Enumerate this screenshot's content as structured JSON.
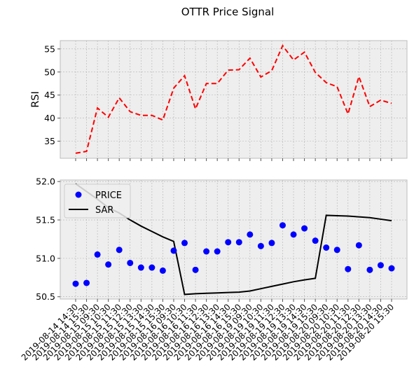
{
  "title": "OTTR Price Signal",
  "chart_data": [
    {
      "type": "line",
      "panel": "rsi",
      "ylabel": "RSI",
      "ylim": [
        31.3,
        56.8
      ],
      "yticks": [
        35,
        40,
        45,
        50,
        55
      ],
      "grid": true,
      "series": [
        {
          "name": "",
          "color": "#ff0000",
          "style": "dashed",
          "values": [
            32.4,
            32.8,
            42.2,
            40.2,
            44.4,
            41.4,
            40.6,
            40.6,
            39.6,
            46.5,
            49.2,
            42.0,
            47.5,
            47.5,
            50.4,
            50.5,
            53.0,
            48.9,
            50.3,
            55.7,
            52.6,
            54.3,
            49.9,
            47.7,
            46.8,
            40.9,
            49.0,
            42.5,
            43.9,
            43.2
          ]
        }
      ]
    },
    {
      "type": "line+scatter",
      "panel": "price",
      "ylim": [
        50.47,
        52.02
      ],
      "yticks": [
        50.5,
        51.0,
        51.5,
        52.0
      ],
      "ytick_labels": [
        "50.5",
        "51.0",
        "51.5",
        "52.0"
      ],
      "grid": true,
      "legend": {
        "placement": "top-left",
        "entries": [
          "PRICE",
          "SAR"
        ]
      },
      "x": [
        "2019-08-14 14:30",
        "2019-08-14 15:30",
        "2019-08-15 09:30",
        "2019-08-15 10:30",
        "2019-08-15 11:30",
        "2019-08-15 12:30",
        "2019-08-15 13:30",
        "2019-08-15 14:30",
        "2019-08-15 15:30",
        "2019-08-16 09:30",
        "2019-08-16 10:30",
        "2019-08-16 11:30",
        "2019-08-16 12:30",
        "2019-08-16 13:30",
        "2019-08-16 14:30",
        "2019-08-16 15:30",
        "2019-08-19 09:30",
        "2019-08-19 10:30",
        "2019-08-19 11:30",
        "2019-08-19 12:30",
        "2019-08-19 13:30",
        "2019-08-19 14:30",
        "2019-08-19 15:30",
        "2019-08-20 09:30",
        "2019-08-20 10:30",
        "2019-08-20 11:30",
        "2019-08-20 12:30",
        "2019-08-20 13:30",
        "2019-08-20 14:30",
        "2019-08-20 15:30"
      ],
      "series": [
        {
          "name": "PRICE",
          "kind": "scatter",
          "color": "#0000ff",
          "values": [
            50.67,
            50.68,
            51.05,
            50.92,
            51.11,
            50.94,
            50.88,
            50.88,
            50.84,
            51.1,
            51.2,
            50.85,
            51.09,
            51.09,
            51.21,
            51.21,
            51.31,
            51.16,
            51.2,
            51.43,
            51.31,
            51.39,
            51.23,
            51.14,
            51.11,
            50.86,
            51.17,
            50.85,
            50.91,
            50.87
          ]
        },
        {
          "name": "SAR",
          "kind": "line",
          "color": "#000000",
          "values": [
            51.97,
            51.87,
            51.77,
            51.66,
            51.59,
            51.5,
            51.42,
            51.35,
            51.28,
            51.22,
            50.53,
            50.54,
            50.545,
            50.55,
            50.555,
            50.56,
            50.575,
            50.605,
            50.635,
            50.665,
            50.695,
            50.72,
            50.74,
            51.56,
            51.555,
            51.55,
            51.54,
            51.53,
            51.51,
            51.49
          ]
        }
      ]
    }
  ]
}
